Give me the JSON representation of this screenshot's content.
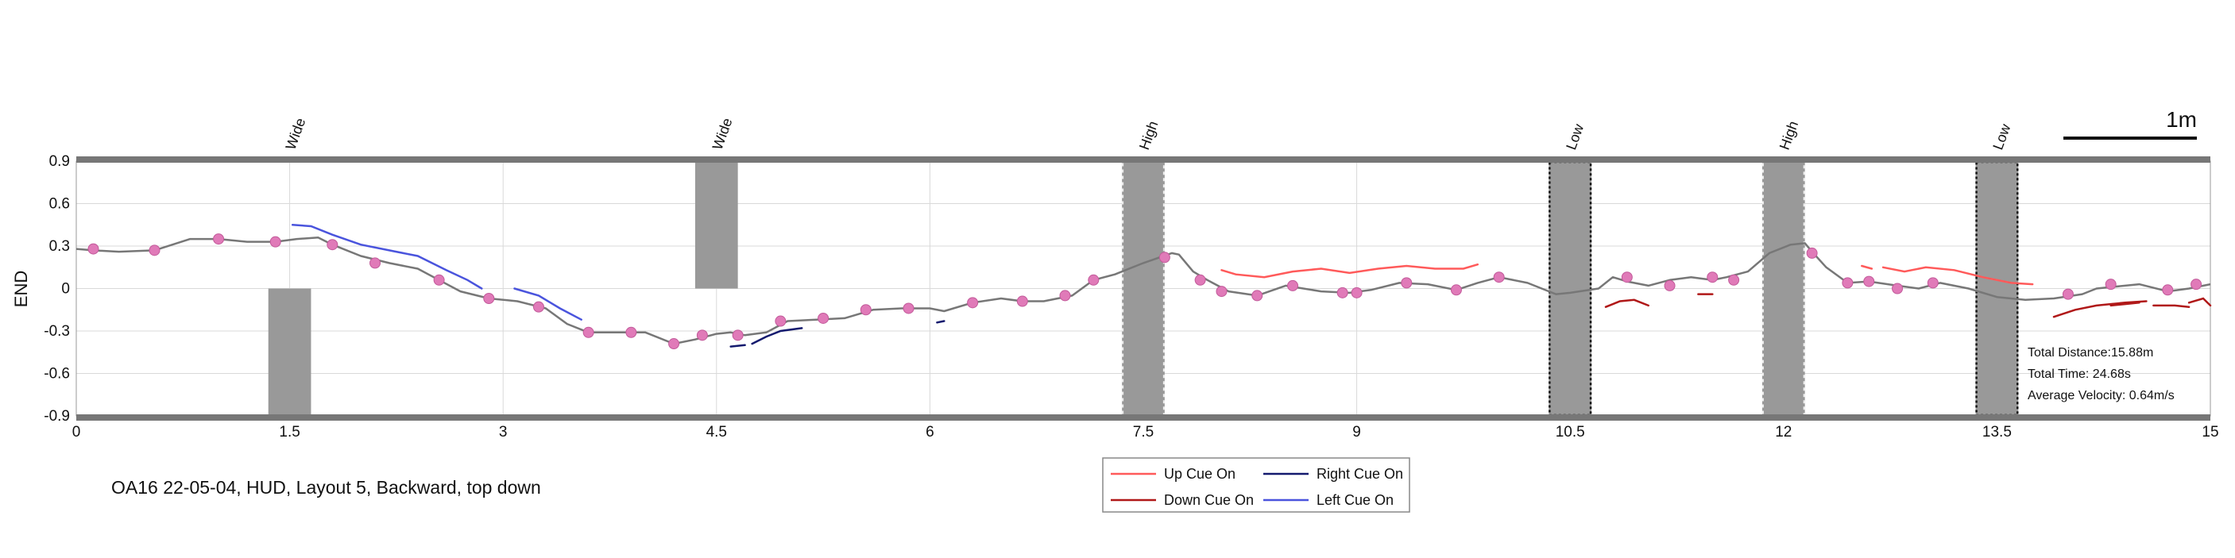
{
  "chart_data": {
    "type": "line",
    "caption": "OA16 22-05-04, HUD, Layout 5, Backward, top down",
    "ylabel": "END",
    "xlabel": "",
    "xlim": [
      0,
      15
    ],
    "ylim": [
      -0.9,
      0.9
    ],
    "xticks": [
      "0",
      "1.5",
      "3",
      "4.5",
      "6",
      "7.5",
      "9",
      "10.5",
      "12",
      "13.5",
      "15"
    ],
    "yticks": [
      "0.9",
      "0.6",
      "0.3",
      "0",
      "-0.3",
      "-0.6",
      "-0.9"
    ],
    "grid": true,
    "scale_bar_label": "1m",
    "stats": {
      "distance": "Total Distance:15.88m",
      "time": "Total Time: 24.68s",
      "velocity": "Average Velocity: 0.64m/s"
    },
    "obstacles": [
      {
        "label": "Wide",
        "x": [
          1.35,
          1.65
        ],
        "y": [
          -0.9,
          0.0
        ],
        "style": "solid"
      },
      {
        "label": "Wide",
        "x": [
          4.35,
          4.65
        ],
        "y": [
          0.0,
          0.9
        ],
        "style": "solid"
      },
      {
        "label": "High",
        "x": [
          7.35,
          7.65
        ],
        "y": [
          -0.9,
          0.9
        ],
        "style": "high"
      },
      {
        "label": "Low",
        "x": [
          10.35,
          10.65
        ],
        "y": [
          -0.9,
          0.9
        ],
        "style": "low"
      },
      {
        "label": "High",
        "x": [
          11.85,
          12.15
        ],
        "y": [
          -0.9,
          0.9
        ],
        "style": "high"
      },
      {
        "label": "Low",
        "x": [
          13.35,
          13.65
        ],
        "y": [
          -0.9,
          0.9
        ],
        "style": "low"
      }
    ],
    "path": {
      "x": [
        0,
        0.12,
        0.3,
        0.55,
        0.8,
        1.0,
        1.2,
        1.4,
        1.55,
        1.7,
        1.8,
        2.0,
        2.2,
        2.4,
        2.55,
        2.7,
        2.9,
        3.1,
        3.3,
        3.45,
        3.6,
        3.75,
        4.0,
        4.2,
        4.35,
        4.5,
        4.6,
        4.7,
        4.85,
        5.0,
        5.2,
        5.4,
        5.6,
        5.8,
        6.0,
        6.1,
        6.3,
        6.5,
        6.65,
        6.8,
        7.0,
        7.15,
        7.3,
        7.5,
        7.7,
        7.75,
        7.85,
        7.95,
        8.1,
        8.3,
        8.5,
        8.75,
        8.95,
        9.1,
        9.3,
        9.5,
        9.7,
        9.85,
        10.0,
        10.2,
        10.4,
        10.5,
        10.7,
        10.8,
        10.9,
        11.05,
        11.2,
        11.35,
        11.5,
        11.6,
        11.75,
        11.9,
        12.05,
        12.15,
        12.2,
        12.3,
        12.45,
        12.6,
        12.8,
        12.95,
        13.1,
        13.3,
        13.5,
        13.7,
        13.9,
        14.1,
        14.2,
        14.5,
        14.7,
        14.85,
        15.0
      ],
      "y": [
        0.28,
        0.27,
        0.26,
        0.27,
        0.35,
        0.35,
        0.33,
        0.33,
        0.35,
        0.36,
        0.31,
        0.23,
        0.18,
        0.14,
        0.06,
        -0.02,
        -0.07,
        -0.09,
        -0.14,
        -0.25,
        -0.31,
        -0.31,
        -0.31,
        -0.39,
        -0.36,
        -0.32,
        -0.31,
        -0.33,
        -0.31,
        -0.23,
        -0.22,
        -0.21,
        -0.15,
        -0.14,
        -0.14,
        -0.16,
        -0.1,
        -0.07,
        -0.09,
        -0.09,
        -0.05,
        0.06,
        0.1,
        0.18,
        0.25,
        0.24,
        0.12,
        0.06,
        -0.02,
        -0.05,
        0.02,
        -0.02,
        -0.03,
        -0.01,
        0.04,
        0.03,
        -0.01,
        0.04,
        0.08,
        0.04,
        -0.04,
        -0.03,
        0.0,
        0.08,
        0.05,
        0.02,
        0.06,
        0.08,
        0.06,
        0.08,
        0.12,
        0.25,
        0.31,
        0.32,
        0.26,
        0.15,
        0.04,
        0.05,
        0.02,
        0.0,
        0.04,
        0.0,
        -0.06,
        -0.08,
        -0.07,
        -0.04,
        0.0,
        0.03,
        -0.02,
        0.0,
        0.03
      ]
    },
    "markers": {
      "x": [
        0.12,
        0.55,
        1.0,
        1.4,
        1.8,
        2.1,
        2.55,
        2.9,
        3.25,
        3.6,
        3.9,
        4.2,
        4.4,
        4.65,
        4.95,
        5.25,
        5.55,
        5.85,
        6.3,
        6.65,
        6.95,
        7.15,
        7.65,
        7.9,
        8.05,
        8.3,
        8.55,
        8.9,
        9.0,
        9.35,
        9.7,
        10.0,
        10.9,
        11.2,
        11.5,
        11.65,
        12.2,
        12.45,
        12.6,
        12.8,
        13.05,
        14.0,
        14.3,
        14.7,
        14.9
      ],
      "y": [
        0.28,
        0.27,
        0.35,
        0.33,
        0.31,
        0.18,
        0.06,
        -0.07,
        -0.13,
        -0.31,
        -0.31,
        -0.39,
        -0.33,
        -0.33,
        -0.23,
        -0.21,
        -0.15,
        -0.14,
        -0.1,
        -0.09,
        -0.05,
        0.06,
        0.22,
        0.06,
        -0.02,
        -0.05,
        0.02,
        -0.03,
        -0.03,
        0.04,
        -0.01,
        0.08,
        0.08,
        0.02,
        0.08,
        0.06,
        0.25,
        0.04,
        0.05,
        0.0,
        0.04,
        -0.04,
        0.03,
        -0.01,
        0.03
      ]
    },
    "cues": [
      {
        "name": "Up Cue On",
        "color": "#ff5a5a",
        "segments": [
          {
            "x": [
              8.05,
              8.15,
              8.35,
              8.55,
              8.75,
              8.95,
              9.15,
              9.35,
              9.55,
              9.75,
              9.85
            ],
            "y": [
              0.13,
              0.1,
              0.08,
              0.12,
              0.14,
              0.11,
              0.14,
              0.16,
              0.14,
              0.14,
              0.17
            ]
          },
          {
            "x": [
              12.55,
              12.62
            ],
            "y": [
              0.16,
              0.14
            ]
          },
          {
            "x": [
              12.7,
              12.85,
              13.0,
              13.2,
              13.4,
              13.6,
              13.75
            ],
            "y": [
              0.15,
              0.12,
              0.15,
              0.13,
              0.08,
              0.04,
              0.03
            ]
          }
        ]
      },
      {
        "name": "Down Cue On",
        "color": "#b01818",
        "segments": [
          {
            "x": [
              10.75,
              10.85,
              10.95,
              11.05
            ],
            "y": [
              -0.13,
              -0.09,
              -0.08,
              -0.12
            ]
          },
          {
            "x": [
              11.4,
              11.5
            ],
            "y": [
              -0.04,
              -0.04
            ]
          },
          {
            "x": [
              13.9,
              14.05,
              14.2,
              14.4,
              14.55
            ],
            "y": [
              -0.2,
              -0.15,
              -0.12,
              -0.1,
              -0.09
            ]
          },
          {
            "x": [
              14.3,
              14.4,
              14.5
            ],
            "y": [
              -0.12,
              -0.11,
              -0.1
            ]
          },
          {
            "x": [
              14.6,
              14.75,
              14.85
            ],
            "y": [
              -0.12,
              -0.12,
              -0.13
            ]
          },
          {
            "x": [
              14.85,
              14.95,
              15.0
            ],
            "y": [
              -0.1,
              -0.07,
              -0.12
            ]
          }
        ]
      },
      {
        "name": "Right Cue On",
        "color": "#141a6e",
        "segments": [
          {
            "x": [
              4.6,
              4.7
            ],
            "y": [
              -0.41,
              -0.4
            ]
          },
          {
            "x": [
              4.75,
              4.85,
              4.95,
              5.1
            ],
            "y": [
              -0.39,
              -0.34,
              -0.3,
              -0.28
            ]
          },
          {
            "x": [
              6.05,
              6.1
            ],
            "y": [
              -0.24,
              -0.23
            ]
          }
        ]
      },
      {
        "name": "Left Cue On",
        "color": "#4a54dd",
        "segments": [
          {
            "x": [
              1.52,
              1.65,
              1.8,
              2.0,
              2.2,
              2.4,
              2.6,
              2.75,
              2.85
            ],
            "y": [
              0.45,
              0.44,
              0.38,
              0.31,
              0.27,
              0.23,
              0.13,
              0.06,
              0.0
            ]
          },
          {
            "x": [
              3.08,
              3.25,
              3.4,
              3.55
            ],
            "y": [
              0.0,
              -0.05,
              -0.14,
              -0.22
            ]
          }
        ]
      }
    ]
  }
}
